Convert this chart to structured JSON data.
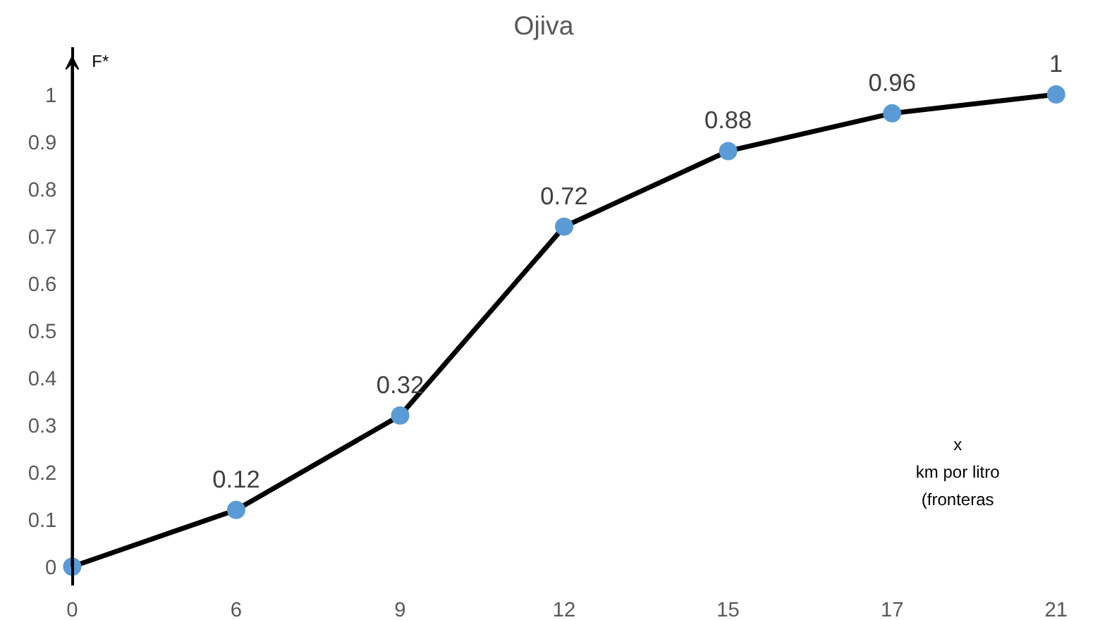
{
  "chart_data": {
    "type": "line",
    "title": "Ojiva",
    "xlabel": "x\nkm por litro\n(fronteras",
    "ylabel": "F*",
    "categories": [
      "0",
      "6",
      "9",
      "12",
      "15",
      "17",
      "21"
    ],
    "series": [
      {
        "color": "#000000",
        "colors": [
          "#5b9bd5",
          "#5b9bd5",
          "#5b9bd5",
          "#5b9bd5",
          "#5b9bd5",
          "#5b9bd5",
          "#5b9bd5"
        ],
        "values": [
          0,
          0.12,
          0.32,
          0.72,
          0.88,
          0.96,
          1
        ],
        "value_labels": [
          null,
          "0.12",
          "0.32",
          "0.72",
          "0.88",
          "0.96",
          "1"
        ]
      }
    ],
    "ylim": [
      0,
      1.08
    ],
    "yticks": [
      0,
      0.1,
      0.2,
      0.3,
      0.4,
      0.5,
      0.6,
      0.7,
      0.8,
      0.9,
      1
    ],
    "marker": "circle",
    "line_style": "solid",
    "grid": false
  }
}
